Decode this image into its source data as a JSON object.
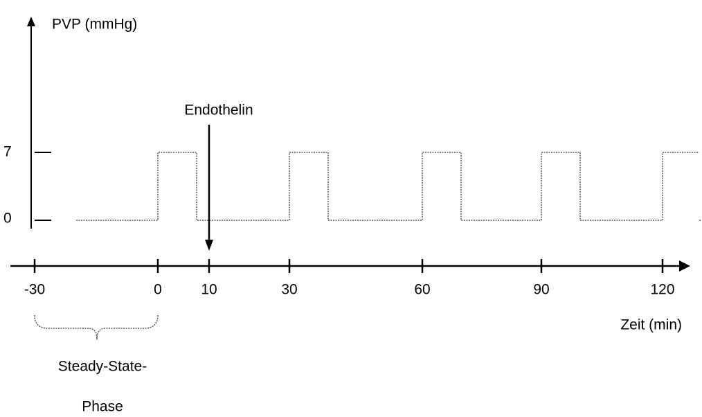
{
  "y_axis": {
    "label": "PVP (mmHg)",
    "ticks": [
      "7",
      "0"
    ]
  },
  "x_axis": {
    "label": "Zeit (min)",
    "ticks": [
      "-30",
      "0",
      "10",
      "30",
      "60",
      "90",
      "120"
    ]
  },
  "annotation": {
    "label": "Endothelin"
  },
  "phase": {
    "label_lines": [
      "Steady-State-",
      "Phase"
    ]
  }
}
